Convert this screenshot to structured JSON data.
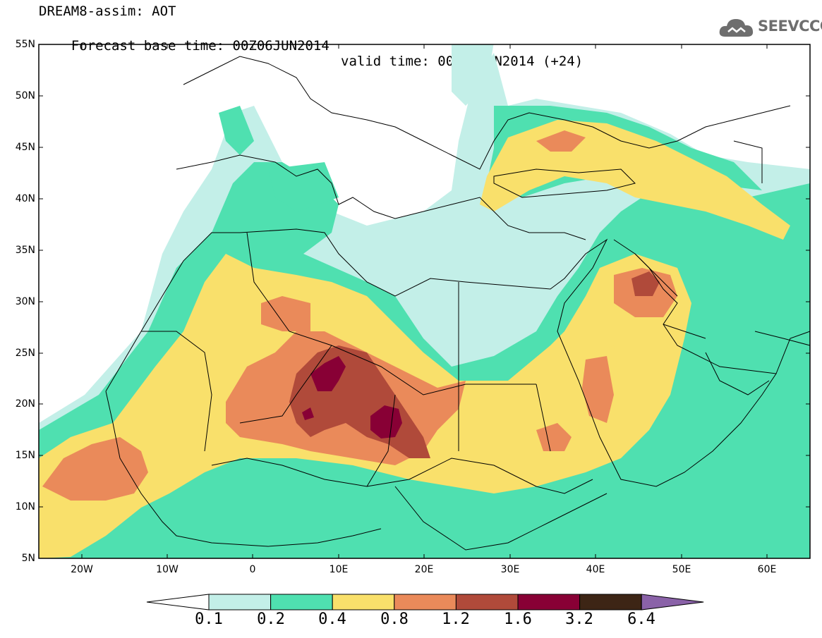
{
  "title": {
    "line1": "DREAM8-assim: AOT",
    "line2_base": "Forecast base time: 00Z06JUN2014",
    "line2_valid": "valid time: 00Z07JUN2014 (+24)"
  },
  "logo": {
    "text": "SEEVCCC",
    "icon": "cloud-icon"
  },
  "lat_ticks": [
    "55N",
    "50N",
    "45N",
    "40N",
    "35N",
    "30N",
    "25N",
    "20N",
    "15N",
    "10N",
    "5N"
  ],
  "lon_ticks": [
    "20W",
    "10W",
    "0",
    "10E",
    "20E",
    "30E",
    "40E",
    "50E",
    "60E"
  ],
  "colorbar": {
    "levels": [
      "0.1",
      "0.2",
      "0.4",
      "0.8",
      "1.2",
      "1.6",
      "3.2",
      "6.4"
    ],
    "colors": [
      "#ffffff",
      "#c3efe8",
      "#4fe0b0",
      "#f9e06b",
      "#ea8a5a",
      "#b04a3a",
      "#880035",
      "#3d2515",
      "#8a62a8"
    ]
  },
  "map_extent": {
    "lon": [
      -25,
      65
    ],
    "lat": [
      5,
      55
    ]
  }
}
